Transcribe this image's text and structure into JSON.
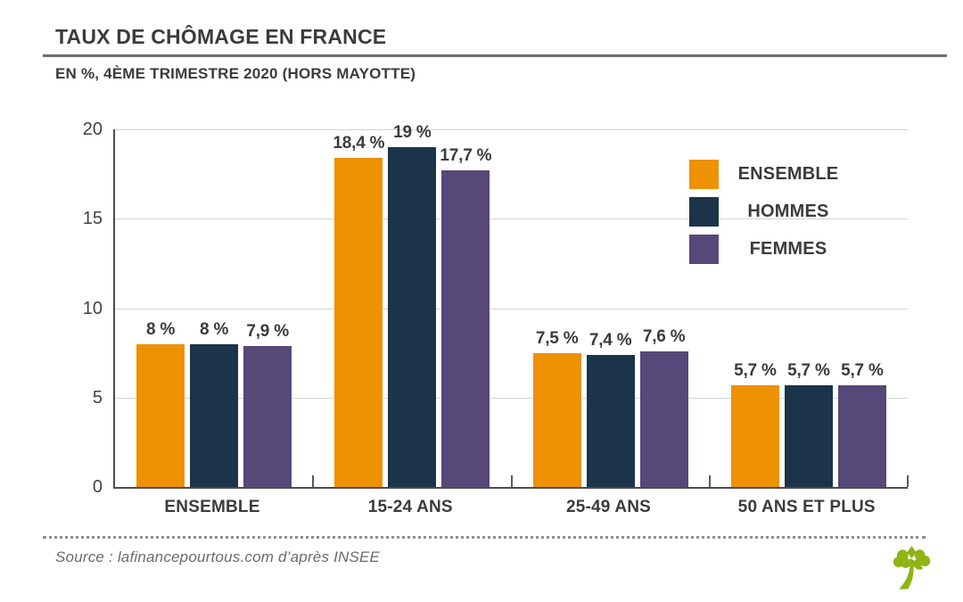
{
  "header": {
    "title": "TAUX DE CHÔMAGE EN FRANCE",
    "subtitle": "EN %, 4ÈME TRIMESTRE 2020 (HORS MAYOTTE)"
  },
  "chart_data": {
    "type": "bar",
    "title": "TAUX DE CHÔMAGE EN FRANCE",
    "subtitle": "EN %, 4ÈME TRIMESTRE 2020 (HORS MAYOTTE)",
    "categories": [
      "ENSEMBLE",
      "15-24 ANS",
      "25-49 ANS",
      "50 ANS ET PLUS"
    ],
    "series": [
      {
        "name": "ENSEMBLE",
        "color": "#EE9102",
        "values": [
          8,
          18.4,
          7.5,
          5.7
        ],
        "labels": [
          "8 %",
          "18,4 %",
          "7,5 %",
          "5,7 %"
        ]
      },
      {
        "name": "HOMMES",
        "color": "#1B3449",
        "values": [
          8,
          19,
          7.4,
          5.7
        ],
        "labels": [
          "8 %",
          "19 %",
          "7,4 %",
          "5,7 %"
        ]
      },
      {
        "name": "FEMMES",
        "color": "#564879",
        "values": [
          7.9,
          17.7,
          7.6,
          5.7
        ],
        "labels": [
          "7,9 %",
          "17,7 %",
          "7,6 %",
          "5,7 %"
        ]
      }
    ],
    "y_ticks": [
      0,
      5,
      10,
      15,
      20
    ],
    "ylim": [
      0,
      20
    ],
    "grid": true,
    "legend_position": "top-right",
    "axis_color": "#4d4d4d",
    "gridline_color": "#d4d4d4"
  },
  "footer": {
    "source": "Source : lafinancepourtous.com d’après INSEE",
    "logo": "lafinancepourtous-tree-logo",
    "logo_color": "#8FB414"
  }
}
